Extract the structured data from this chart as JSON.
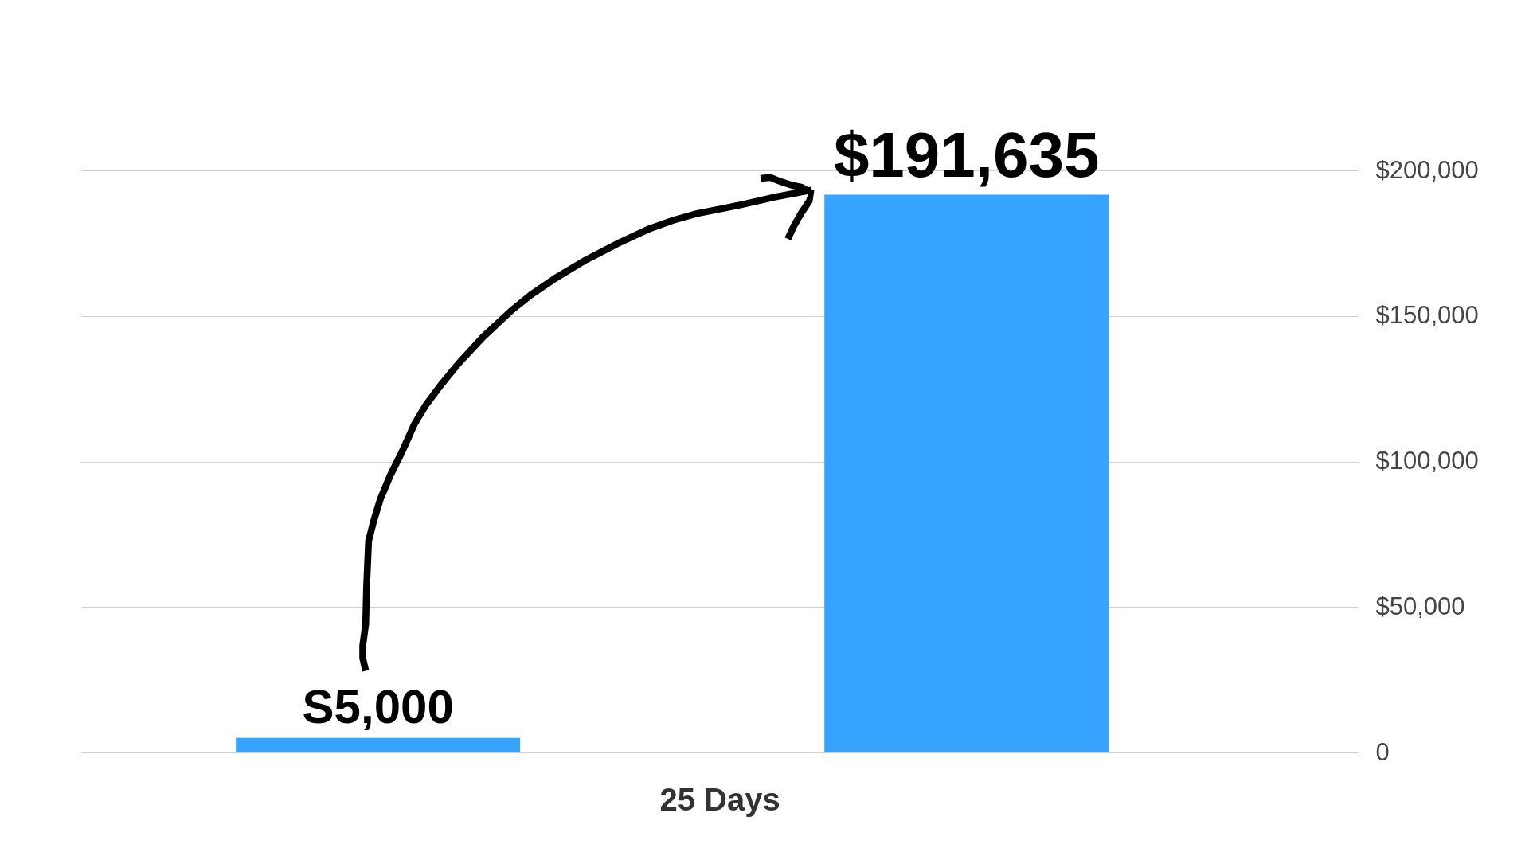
{
  "chart_data": {
    "type": "bar",
    "xlabel": "25 Days",
    "categories": [
      null,
      null
    ],
    "values": [
      5000,
      191635
    ],
    "value_labels": [
      "S5,000",
      "$191,635"
    ],
    "color": "#36a3fe",
    "ylim": [
      0,
      200000
    ],
    "yticks": [
      {
        "value": 0,
        "label": "0"
      },
      {
        "value": 50000,
        "label": "$50,000"
      },
      {
        "value": 100000,
        "label": "$100,000"
      },
      {
        "value": 150000,
        "label": "$150,000"
      },
      {
        "value": 200000,
        "label": "$200,000"
      }
    ],
    "grid": "y"
  }
}
